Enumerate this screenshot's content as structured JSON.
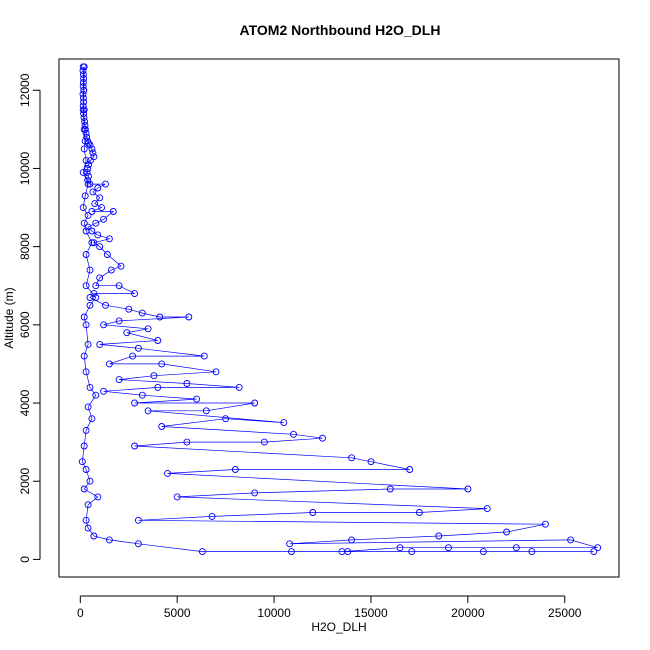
{
  "chart_data": {
    "type": "line",
    "title": "ATOM2 Northbound H2O_DLH",
    "xlabel": "H2O_DLH",
    "ylabel": "Altitude (m)",
    "xlim": [
      -1100,
      27800
    ],
    "ylim": [
      -450,
      12800
    ],
    "xticks": [
      0,
      5000,
      10000,
      15000,
      20000,
      25000
    ],
    "yticks": [
      0,
      2000,
      4000,
      6000,
      8000,
      10000,
      12000
    ],
    "grid": false,
    "legend": "none",
    "marker": "open-circle",
    "color": "#0000ff",
    "series": [
      {
        "points": [
          [
            150,
            12600
          ],
          [
            140,
            12500
          ],
          [
            160,
            12400
          ],
          [
            170,
            12300
          ],
          [
            160,
            12200
          ],
          [
            150,
            12100
          ],
          [
            180,
            12000
          ],
          [
            140,
            11900
          ],
          [
            160,
            11800
          ],
          [
            170,
            11700
          ],
          [
            150,
            11600
          ],
          [
            200,
            11500
          ],
          [
            170,
            11400
          ],
          [
            190,
            11300
          ],
          [
            220,
            11200
          ],
          [
            240,
            11100
          ],
          [
            260,
            11000
          ],
          [
            300,
            10900
          ],
          [
            330,
            10800
          ],
          [
            380,
            10700
          ],
          [
            420,
            10650
          ],
          [
            500,
            10600
          ],
          [
            600,
            10500
          ],
          [
            650,
            10400
          ],
          [
            700,
            10300
          ],
          [
            520,
            10200
          ],
          [
            430,
            10100
          ],
          [
            380,
            10000
          ],
          [
            350,
            9900
          ],
          [
            420,
            9800
          ],
          [
            380,
            9700
          ],
          [
            500,
            9600
          ],
          [
            1300,
            9600
          ],
          [
            900,
            9500
          ],
          [
            650,
            9400
          ],
          [
            1000,
            9250
          ],
          [
            750,
            9100
          ],
          [
            1100,
            9000
          ],
          [
            600,
            8900
          ],
          [
            1700,
            8900
          ],
          [
            1200,
            8700
          ],
          [
            800,
            8600
          ],
          [
            400,
            8500
          ],
          [
            600,
            8400
          ],
          [
            900,
            8300
          ],
          [
            1500,
            8200
          ],
          [
            700,
            8100
          ],
          [
            1000,
            8000
          ],
          [
            1400,
            7800
          ],
          [
            2100,
            7500
          ],
          [
            1600,
            7400
          ],
          [
            1000,
            7200
          ],
          [
            800,
            7000
          ],
          [
            2000,
            7000
          ],
          [
            2800,
            6800
          ],
          [
            700,
            6800
          ],
          [
            500,
            6700
          ],
          [
            1300,
            6500
          ],
          [
            2500,
            6400
          ],
          [
            3200,
            6300
          ],
          [
            4100,
            6200
          ],
          [
            5600,
            6200
          ],
          [
            2000,
            6100
          ],
          [
            1200,
            6000
          ],
          [
            3500,
            5900
          ],
          [
            2400,
            5800
          ],
          [
            4000,
            5600
          ],
          [
            1000,
            5500
          ],
          [
            3000,
            5400
          ],
          [
            6400,
            5200
          ],
          [
            2700,
            5200
          ],
          [
            1500,
            5000
          ],
          [
            4200,
            5000
          ],
          [
            7000,
            4800
          ],
          [
            3800,
            4700
          ],
          [
            2000,
            4600
          ],
          [
            5500,
            4500
          ],
          [
            8200,
            4400
          ],
          [
            4000,
            4400
          ],
          [
            1200,
            4300
          ],
          [
            3200,
            4200
          ],
          [
            6000,
            4100
          ],
          [
            2800,
            4000
          ],
          [
            9000,
            4000
          ],
          [
            6500,
            3800
          ],
          [
            3500,
            3800
          ],
          [
            10500,
            3500
          ],
          [
            7500,
            3600
          ],
          [
            4200,
            3400
          ],
          [
            11000,
            3200
          ],
          [
            12500,
            3100
          ],
          [
            9500,
            3000
          ],
          [
            5500,
            3000
          ],
          [
            2800,
            2900
          ],
          [
            14000,
            2600
          ],
          [
            15000,
            2500
          ],
          [
            17000,
            2300
          ],
          [
            8000,
            2300
          ],
          [
            4500,
            2200
          ],
          [
            20000,
            1800
          ],
          [
            16000,
            1800
          ],
          [
            9000,
            1700
          ],
          [
            5000,
            1600
          ],
          [
            21000,
            1300
          ],
          [
            17500,
            1200
          ],
          [
            12000,
            1200
          ],
          [
            6800,
            1100
          ],
          [
            3000,
            1000
          ],
          [
            24000,
            900
          ],
          [
            22000,
            700
          ],
          [
            18500,
            600
          ],
          [
            14000,
            500
          ],
          [
            10800,
            400
          ],
          [
            25300,
            500
          ],
          [
            26700,
            300
          ],
          [
            22500,
            300
          ],
          [
            19000,
            300
          ],
          [
            16500,
            300
          ],
          [
            13500,
            200
          ],
          [
            26500,
            200
          ],
          [
            23300,
            200
          ],
          [
            20800,
            200
          ],
          [
            17100,
            200
          ],
          [
            13800,
            200
          ],
          [
            10900,
            200
          ],
          [
            6300,
            200
          ],
          [
            3000,
            400
          ],
          [
            1500,
            500
          ],
          [
            700,
            600
          ],
          [
            400,
            800
          ],
          [
            300,
            1000
          ],
          [
            400,
            1400
          ],
          [
            900,
            1600
          ],
          [
            200,
            1800
          ],
          [
            500,
            2000
          ],
          [
            300,
            2300
          ],
          [
            100,
            2500
          ],
          [
            200,
            2900
          ],
          [
            300,
            3300
          ],
          [
            600,
            3600
          ],
          [
            400,
            3900
          ],
          [
            800,
            4200
          ],
          [
            500,
            4400
          ],
          [
            300,
            4800
          ],
          [
            200,
            5200
          ],
          [
            400,
            5500
          ],
          [
            300,
            6000
          ],
          [
            200,
            6200
          ],
          [
            500,
            6500
          ],
          [
            800,
            6700
          ],
          [
            300,
            7000
          ],
          [
            500,
            7400
          ],
          [
            300,
            7800
          ],
          [
            600,
            8100
          ],
          [
            300,
            8400
          ],
          [
            200,
            8600
          ],
          [
            400,
            8800
          ],
          [
            150,
            9000
          ],
          [
            250,
            9300
          ],
          [
            400,
            9600
          ],
          [
            150,
            9900
          ],
          [
            300,
            10200
          ],
          [
            200,
            10500
          ],
          [
            250,
            10700
          ],
          [
            200,
            11000
          ],
          [
            150,
            11500
          ],
          [
            180,
            12000
          ],
          [
            200,
            12600
          ]
        ]
      }
    ]
  }
}
